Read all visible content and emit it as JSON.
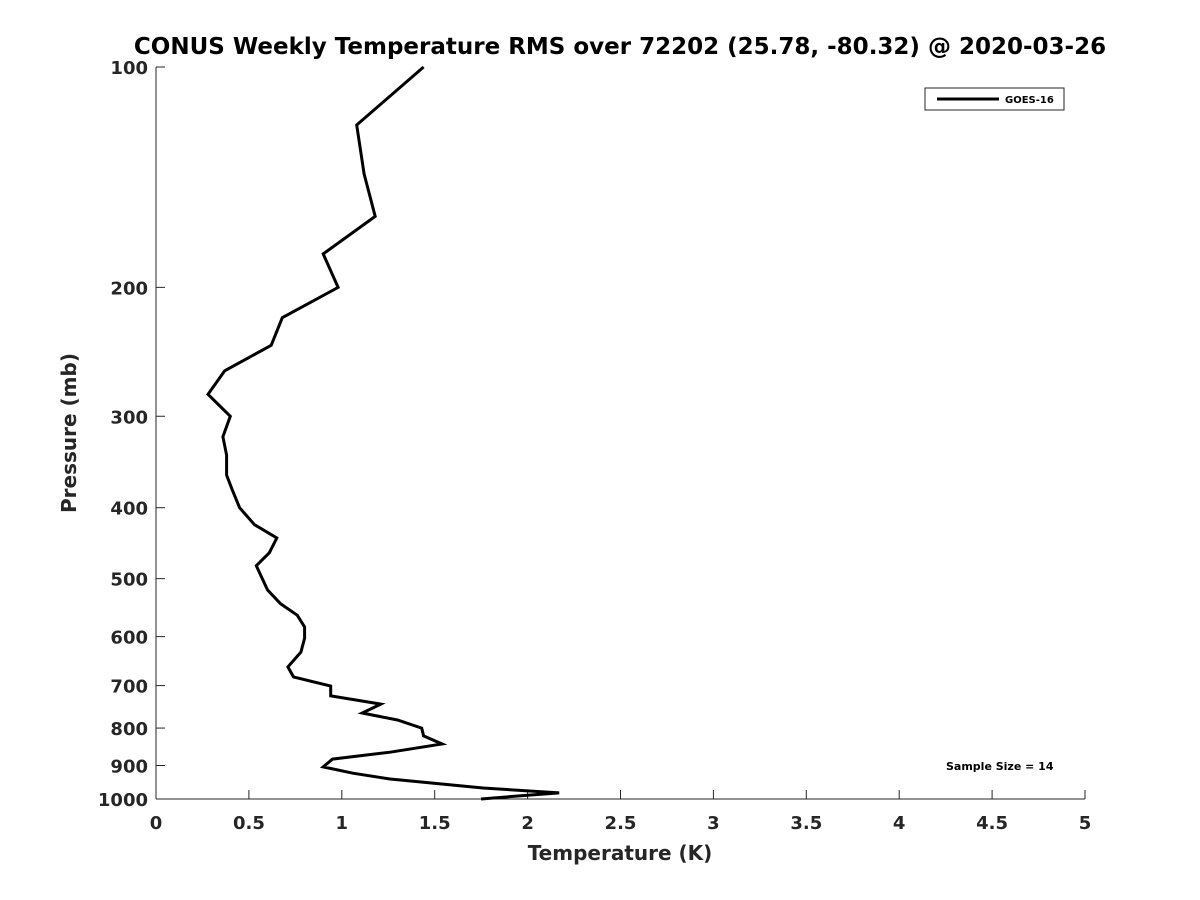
{
  "chart_data": {
    "type": "line",
    "title": "CONUS Weekly Temperature RMS over 72202 (25.78, -80.32) @ 2020-03-26",
    "xlabel": "Temperature (K)",
    "ylabel": "Pressure (mb)",
    "xlim": [
      0,
      5
    ],
    "ylim": [
      100,
      1000
    ],
    "yscale": "log",
    "y_reversed": true,
    "grid": false,
    "xticks": [
      "0",
      "0.5",
      "1",
      "1.5",
      "2",
      "2.5",
      "3",
      "3.5",
      "4",
      "4.5",
      "5"
    ],
    "yticks": [
      "100",
      "200",
      "300",
      "400",
      "500",
      "600",
      "700",
      "800",
      "900",
      "1000"
    ],
    "legend": {
      "placement": "top-right",
      "entries": [
        "GOES-16"
      ]
    },
    "annotation": "Sample Size = 14",
    "series": [
      {
        "name": "GOES-16",
        "color": "#000000",
        "points": [
          [
            1.44,
            100
          ],
          [
            1.08,
            120
          ],
          [
            1.12,
            140
          ],
          [
            1.18,
            160
          ],
          [
            0.9,
            180
          ],
          [
            0.98,
            200
          ],
          [
            0.68,
            220
          ],
          [
            0.62,
            240
          ],
          [
            0.37,
            260
          ],
          [
            0.28,
            280
          ],
          [
            0.4,
            300
          ],
          [
            0.36,
            320
          ],
          [
            0.38,
            339
          ],
          [
            0.38,
            361
          ],
          [
            0.41,
            378
          ],
          [
            0.45,
            400
          ],
          [
            0.53,
            422
          ],
          [
            0.65,
            440
          ],
          [
            0.61,
            461
          ],
          [
            0.54,
            480
          ],
          [
            0.6,
            518
          ],
          [
            0.67,
            541
          ],
          [
            0.76,
            561
          ],
          [
            0.8,
            582
          ],
          [
            0.8,
            603
          ],
          [
            0.78,
            630
          ],
          [
            0.71,
            660
          ],
          [
            0.74,
            681
          ],
          [
            0.94,
            701
          ],
          [
            0.94,
            723
          ],
          [
            1.21,
            742
          ],
          [
            1.11,
            763
          ],
          [
            1.3,
            780
          ],
          [
            1.43,
            800
          ],
          [
            1.44,
            820
          ],
          [
            1.54,
            841
          ],
          [
            1.26,
            863
          ],
          [
            0.95,
            882
          ],
          [
            0.9,
            904
          ],
          [
            1.06,
            922
          ],
          [
            1.26,
            939
          ],
          [
            1.76,
            966
          ],
          [
            2.17,
            981
          ],
          [
            2.0,
            988
          ],
          [
            1.75,
            1000
          ]
        ]
      }
    ]
  }
}
